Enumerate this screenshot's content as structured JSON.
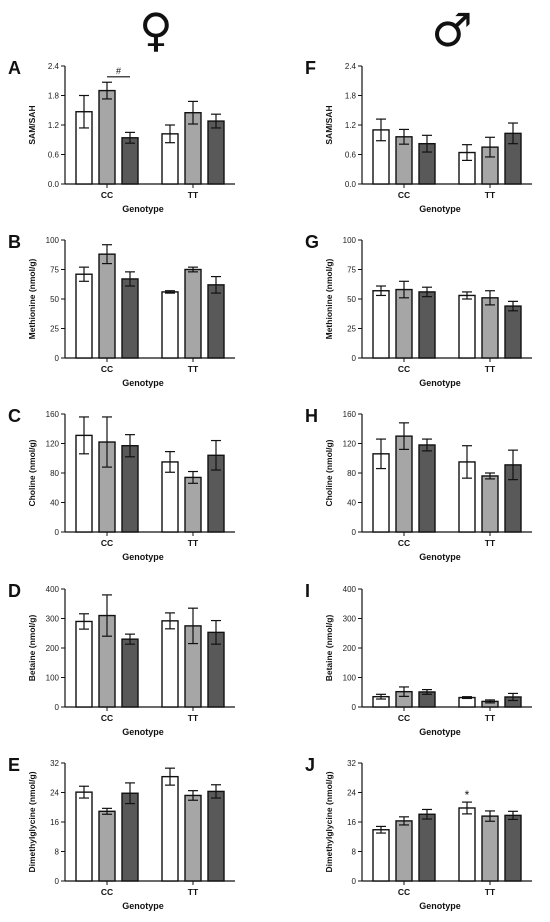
{
  "header": {
    "female_symbol": "♀",
    "male_symbol": "♂"
  },
  "colors": {
    "bar_fills": [
      "#ffffff",
      "#a6a6a6",
      "#595959"
    ],
    "stroke": "#111111"
  },
  "chart_data": [
    {
      "type": "bar",
      "panel": "A",
      "sex": "female",
      "ylabel": "SAM/SAH",
      "xlabel": "Genotype",
      "ylim": [
        0,
        2.4
      ],
      "yticks": [
        "0.0",
        "0.6",
        "1.2",
        "1.8",
        "2.4"
      ],
      "categories": [
        "CC",
        "TT"
      ],
      "series": [
        {
          "values": [
            1.47,
            1.02
          ],
          "errors": [
            0.33,
            0.18
          ]
        },
        {
          "values": [
            1.9,
            1.45
          ],
          "errors": [
            0.17,
            0.23
          ]
        },
        {
          "values": [
            0.94,
            1.28
          ],
          "errors": [
            0.11,
            0.14
          ]
        }
      ],
      "annotations": [
        {
          "text": "#",
          "category": 0,
          "from_series": 1,
          "to_series": 2,
          "y": 2.18
        }
      ]
    },
    {
      "type": "bar",
      "panel": "F",
      "sex": "male",
      "ylabel": "SAM/SAH",
      "xlabel": "Genotype",
      "ylim": [
        0,
        2.4
      ],
      "yticks": [
        "0.0",
        "0.6",
        "1.2",
        "1.8",
        "2.4"
      ],
      "categories": [
        "CC",
        "TT"
      ],
      "series": [
        {
          "values": [
            1.1,
            0.64
          ],
          "errors": [
            0.22,
            0.16
          ]
        },
        {
          "values": [
            0.96,
            0.75
          ],
          "errors": [
            0.15,
            0.2
          ]
        },
        {
          "values": [
            0.82,
            1.03
          ],
          "errors": [
            0.17,
            0.21
          ]
        }
      ],
      "annotations": []
    },
    {
      "type": "bar",
      "panel": "B",
      "sex": "female",
      "ylabel": "Methionine (nmol/g)",
      "xlabel": "Genotype",
      "ylim": [
        0,
        100
      ],
      "yticks": [
        "0",
        "25",
        "50",
        "75",
        "100"
      ],
      "categories": [
        "CC",
        "TT"
      ],
      "series": [
        {
          "values": [
            71,
            56
          ],
          "errors": [
            6,
            1
          ]
        },
        {
          "values": [
            88,
            75
          ],
          "errors": [
            8,
            2
          ]
        },
        {
          "values": [
            67,
            62
          ],
          "errors": [
            6,
            7
          ]
        }
      ],
      "annotations": []
    },
    {
      "type": "bar",
      "panel": "G",
      "sex": "male",
      "ylabel": "Methionine (nmol/g)",
      "xlabel": "Genotype",
      "ylim": [
        0,
        100
      ],
      "yticks": [
        "0",
        "25",
        "50",
        "75",
        "100"
      ],
      "categories": [
        "CC",
        "TT"
      ],
      "series": [
        {
          "values": [
            57,
            53
          ],
          "errors": [
            4,
            3
          ]
        },
        {
          "values": [
            58,
            51
          ],
          "errors": [
            7,
            6
          ]
        },
        {
          "values": [
            56,
            44
          ],
          "errors": [
            4,
            4
          ]
        }
      ],
      "annotations": []
    },
    {
      "type": "bar",
      "panel": "C",
      "sex": "female",
      "ylabel": "Choline (nmol/g)",
      "xlabel": "Genotype",
      "ylim": [
        0,
        160
      ],
      "yticks": [
        "0",
        "40",
        "80",
        "120",
        "160"
      ],
      "categories": [
        "CC",
        "TT"
      ],
      "series": [
        {
          "values": [
            131,
            95
          ],
          "errors": [
            25,
            14
          ]
        },
        {
          "values": [
            122,
            74
          ],
          "errors": [
            34,
            8
          ]
        },
        {
          "values": [
            117,
            104
          ],
          "errors": [
            15,
            20
          ]
        }
      ],
      "annotations": []
    },
    {
      "type": "bar",
      "panel": "H",
      "sex": "male",
      "ylabel": "Choline (nmol/g)",
      "xlabel": "Genotype",
      "ylim": [
        0,
        160
      ],
      "yticks": [
        "0",
        "40",
        "80",
        "120",
        "160"
      ],
      "categories": [
        "CC",
        "TT"
      ],
      "series": [
        {
          "values": [
            106,
            95
          ],
          "errors": [
            20,
            22
          ]
        },
        {
          "values": [
            130,
            76
          ],
          "errors": [
            18,
            4
          ]
        },
        {
          "values": [
            118,
            91
          ],
          "errors": [
            8,
            20
          ]
        }
      ],
      "annotations": []
    },
    {
      "type": "bar",
      "panel": "D",
      "sex": "female",
      "ylabel": "Betaine (nmol/g)",
      "xlabel": "Genotype",
      "ylim": [
        0,
        400
      ],
      "yticks": [
        "0",
        "100",
        "200",
        "300",
        "400"
      ],
      "categories": [
        "CC",
        "TT"
      ],
      "series": [
        {
          "values": [
            290,
            292
          ],
          "errors": [
            26,
            27
          ]
        },
        {
          "values": [
            310,
            275
          ],
          "errors": [
            70,
            60
          ]
        },
        {
          "values": [
            230,
            253
          ],
          "errors": [
            17,
            40
          ]
        }
      ],
      "annotations": []
    },
    {
      "type": "bar",
      "panel": "I",
      "sex": "male",
      "ylabel": "Betaine (nmol/g)",
      "xlabel": "Genotype",
      "ylim": [
        0,
        400
      ],
      "yticks": [
        "0",
        "100",
        "200",
        "300",
        "400"
      ],
      "categories": [
        "CC",
        "TT"
      ],
      "series": [
        {
          "values": [
            35,
            32
          ],
          "errors": [
            8,
            3
          ]
        },
        {
          "values": [
            52,
            19
          ],
          "errors": [
            16,
            5
          ]
        },
        {
          "values": [
            51,
            34
          ],
          "errors": [
            8,
            12
          ]
        }
      ],
      "annotations": []
    },
    {
      "type": "bar",
      "panel": "E",
      "sex": "female",
      "ylabel": "Dimethylglycine (nmol/g)",
      "xlabel": "Genotype",
      "ylim": [
        0,
        32
      ],
      "yticks": [
        "0",
        "8",
        "16",
        "24",
        "32"
      ],
      "categories": [
        "CC",
        "TT"
      ],
      "series": [
        {
          "values": [
            24.1,
            28.3
          ],
          "errors": [
            1.6,
            2.3
          ]
        },
        {
          "values": [
            18.9,
            23.2
          ],
          "errors": [
            0.8,
            1.3
          ]
        },
        {
          "values": [
            23.8,
            24.3
          ],
          "errors": [
            2.8,
            1.8
          ]
        }
      ],
      "annotations": []
    },
    {
      "type": "bar",
      "panel": "J",
      "sex": "male",
      "ylabel": "Dimethylglycine (nmol/g)",
      "xlabel": "Genotype",
      "ylim": [
        0,
        32
      ],
      "yticks": [
        "0",
        "8",
        "16",
        "24",
        "32"
      ],
      "categories": [
        "CC",
        "TT"
      ],
      "series": [
        {
          "values": [
            13.9,
            19.8
          ],
          "errors": [
            0.9,
            1.6
          ]
        },
        {
          "values": [
            16.3,
            17.6
          ],
          "errors": [
            1.1,
            1.4
          ]
        },
        {
          "values": [
            18.1,
            17.8
          ],
          "errors": [
            1.3,
            1.1
          ]
        }
      ],
      "annotations": [
        {
          "text": "*",
          "category": 1,
          "series": 0
        }
      ]
    }
  ]
}
